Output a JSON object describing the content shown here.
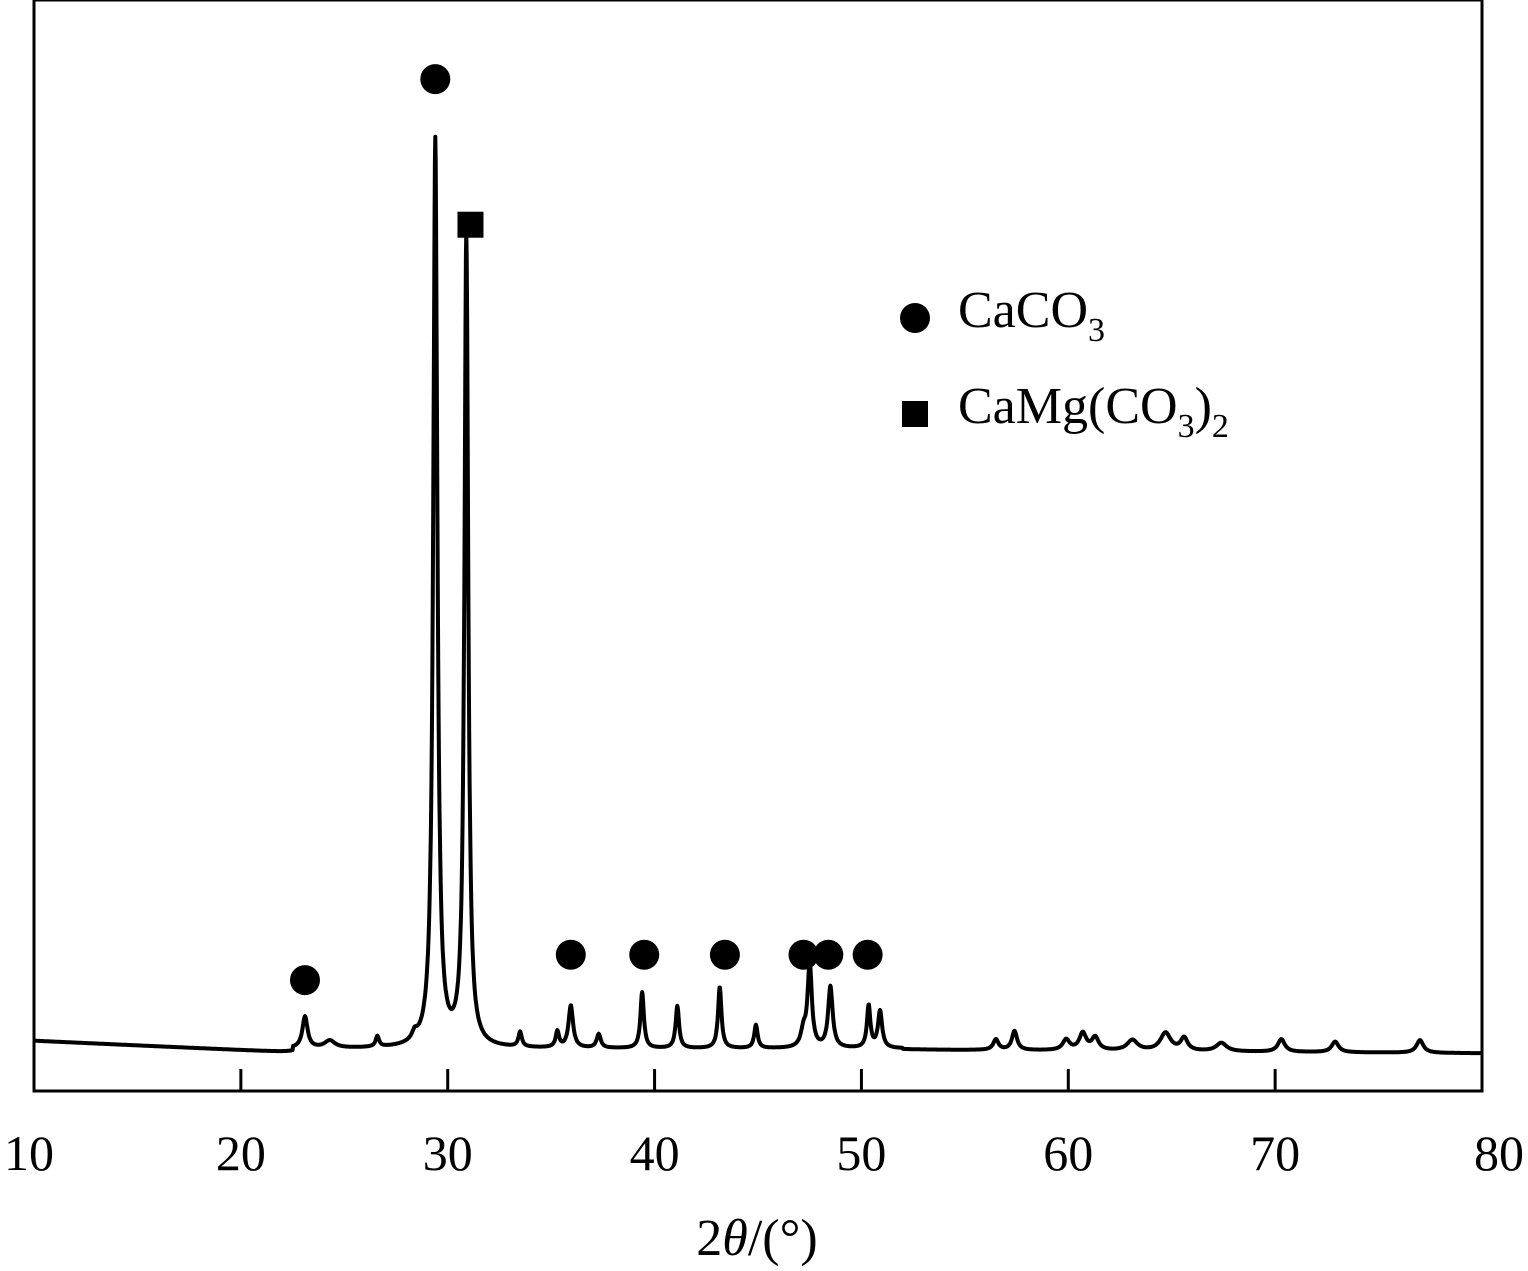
{
  "chart_data": {
    "type": "line",
    "title": "",
    "xlabel_parts": {
      "prefix": "2",
      "symbol": "θ",
      "unit": "/(°)"
    },
    "ylabel": "",
    "xlim": [
      10,
      80
    ],
    "ylim": [
      0,
      100
    ],
    "x_ticks": [
      10,
      20,
      30,
      40,
      50,
      60,
      70,
      80
    ],
    "y_ticks_shown": false,
    "grid": false,
    "legend_position": "top-right",
    "legend": [
      {
        "marker": "circle",
        "label_main": "CaCO",
        "sub": "3",
        "tail": "",
        "tail_sub": ""
      },
      {
        "marker": "square",
        "label_main": "CaMg(CO",
        "sub": "3",
        "tail": ")",
        "tail_sub": "2"
      }
    ],
    "series": [
      {
        "peaks": [
          {
            "x": 23.1,
            "h": 3.0,
            "w": 0.15
          },
          {
            "x": 24.3,
            "h": 0.7,
            "w": 0.3
          },
          {
            "x": 26.6,
            "h": 1.0,
            "w": 0.1
          },
          {
            "x": 28.4,
            "h": 0.7,
            "w": 0.15
          },
          {
            "x": 29.4,
            "h": 86.0,
            "w": 0.12
          },
          {
            "x": 30.9,
            "h": 77.0,
            "w": 0.11
          },
          {
            "x": 33.5,
            "h": 1.4,
            "w": 0.1
          },
          {
            "x": 35.3,
            "h": 1.5,
            "w": 0.1
          },
          {
            "x": 35.95,
            "h": 4.0,
            "w": 0.13
          },
          {
            "x": 37.3,
            "h": 1.3,
            "w": 0.12
          },
          {
            "x": 39.4,
            "h": 5.3,
            "w": 0.1
          },
          {
            "x": 41.1,
            "h": 4.0,
            "w": 0.1
          },
          {
            "x": 43.15,
            "h": 5.8,
            "w": 0.1
          },
          {
            "x": 44.9,
            "h": 2.2,
            "w": 0.1
          },
          {
            "x": 47.2,
            "h": 1.5,
            "w": 0.15
          },
          {
            "x": 47.5,
            "h": 8.0,
            "w": 0.12
          },
          {
            "x": 48.5,
            "h": 5.8,
            "w": 0.13
          },
          {
            "x": 50.35,
            "h": 4.0,
            "w": 0.1
          },
          {
            "x": 50.9,
            "h": 3.5,
            "w": 0.12
          },
          {
            "x": 56.5,
            "h": 1.0,
            "w": 0.15
          },
          {
            "x": 57.4,
            "h": 1.8,
            "w": 0.15
          },
          {
            "x": 59.9,
            "h": 1.0,
            "w": 0.2
          },
          {
            "x": 60.7,
            "h": 1.6,
            "w": 0.2
          },
          {
            "x": 61.3,
            "h": 1.2,
            "w": 0.2
          },
          {
            "x": 63.1,
            "h": 1.0,
            "w": 0.3
          },
          {
            "x": 64.7,
            "h": 1.7,
            "w": 0.3
          },
          {
            "x": 65.6,
            "h": 1.2,
            "w": 0.2
          },
          {
            "x": 67.4,
            "h": 0.8,
            "w": 0.3
          },
          {
            "x": 70.3,
            "h": 1.2,
            "w": 0.2
          },
          {
            "x": 72.9,
            "h": 1.0,
            "w": 0.2
          },
          {
            "x": 77.0,
            "h": 1.2,
            "w": 0.2
          }
        ]
      }
    ],
    "phase_markers": [
      {
        "phase": "CaCO3",
        "marker": "circle",
        "x": 23.1,
        "y": 7.1
      },
      {
        "phase": "CaCO3",
        "marker": "circle",
        "x": 29.4,
        "y": 92.5
      },
      {
        "phase": "CaMg(CO3)2",
        "marker": "square",
        "x": 31.1,
        "y": 78.7
      },
      {
        "phase": "CaCO3",
        "marker": "circle",
        "x": 35.95,
        "y": 9.5
      },
      {
        "phase": "CaCO3",
        "marker": "circle",
        "x": 39.5,
        "y": 9.5
      },
      {
        "phase": "CaCO3",
        "marker": "circle",
        "x": 43.4,
        "y": 9.5
      },
      {
        "phase": "CaCO3",
        "marker": "circle",
        "x": 47.2,
        "y": 9.5
      },
      {
        "phase": "CaCO3",
        "marker": "circle",
        "x": 48.4,
        "y": 9.5
      },
      {
        "phase": "CaCO3",
        "marker": "circle",
        "x": 50.3,
        "y": 9.5
      }
    ]
  }
}
